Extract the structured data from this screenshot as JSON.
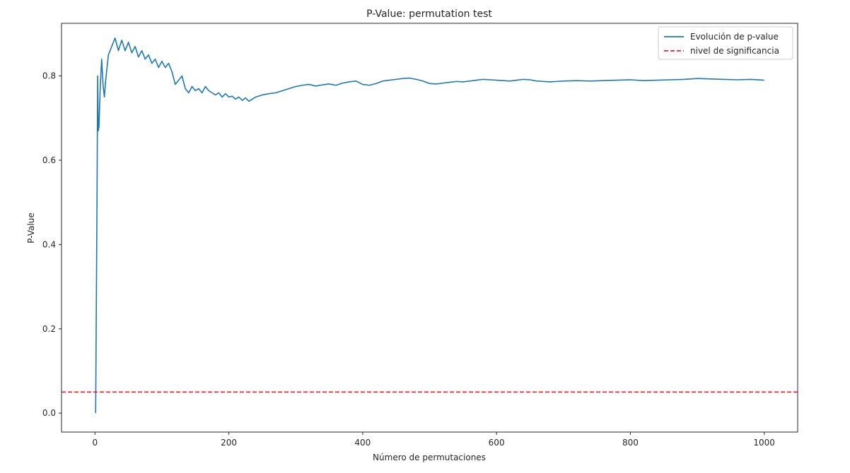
{
  "chart_data": {
    "type": "line",
    "title": "P-Value: permutation test",
    "xlabel": "Número de permutaciones",
    "ylabel": "P-Value",
    "xlim": [
      -50,
      1050
    ],
    "ylim": [
      -0.045,
      0.925
    ],
    "xticks": [
      0,
      200,
      400,
      600,
      800,
      1000
    ],
    "yticks": [
      0.0,
      0.2,
      0.4,
      0.6,
      0.8
    ],
    "xtick_labels": [
      "0",
      "200",
      "400",
      "600",
      "800",
      "1000"
    ],
    "ytick_labels": [
      "0.0",
      "0.2",
      "0.4",
      "0.6",
      "0.8"
    ],
    "grid": false,
    "legend_position": "top-right",
    "series": [
      {
        "name": "Evolución de p-value",
        "color": "#1f77b4",
        "style": "solid",
        "x": [
          1,
          3,
          4,
          5,
          6,
          8,
          10,
          12,
          14,
          16,
          18,
          20,
          25,
          30,
          35,
          40,
          45,
          50,
          55,
          60,
          65,
          70,
          75,
          80,
          85,
          90,
          95,
          100,
          105,
          110,
          115,
          120,
          125,
          130,
          135,
          140,
          145,
          150,
          155,
          160,
          165,
          170,
          175,
          180,
          185,
          190,
          195,
          200,
          205,
          210,
          215,
          220,
          225,
          230,
          235,
          240,
          250,
          260,
          270,
          280,
          290,
          300,
          310,
          320,
          330,
          340,
          350,
          360,
          370,
          380,
          390,
          400,
          410,
          420,
          430,
          440,
          450,
          460,
          470,
          480,
          490,
          500,
          510,
          520,
          530,
          540,
          550,
          560,
          570,
          580,
          590,
          600,
          610,
          620,
          630,
          640,
          650,
          660,
          670,
          680,
          690,
          700,
          720,
          740,
          760,
          780,
          800,
          820,
          840,
          860,
          880,
          900,
          920,
          940,
          960,
          980,
          1000
        ],
        "y": [
          0.0,
          0.5,
          0.8,
          0.67,
          0.68,
          0.78,
          0.84,
          0.78,
          0.75,
          0.79,
          0.82,
          0.85,
          0.87,
          0.89,
          0.86,
          0.885,
          0.86,
          0.88,
          0.855,
          0.87,
          0.845,
          0.86,
          0.84,
          0.85,
          0.83,
          0.84,
          0.82,
          0.835,
          0.82,
          0.83,
          0.81,
          0.78,
          0.79,
          0.8,
          0.77,
          0.76,
          0.775,
          0.765,
          0.77,
          0.76,
          0.775,
          0.765,
          0.76,
          0.755,
          0.76,
          0.75,
          0.758,
          0.75,
          0.752,
          0.745,
          0.75,
          0.742,
          0.748,
          0.74,
          0.745,
          0.75,
          0.755,
          0.758,
          0.76,
          0.765,
          0.77,
          0.775,
          0.778,
          0.78,
          0.776,
          0.779,
          0.781,
          0.778,
          0.783,
          0.786,
          0.788,
          0.78,
          0.778,
          0.782,
          0.788,
          0.79,
          0.792,
          0.794,
          0.795,
          0.792,
          0.788,
          0.782,
          0.781,
          0.783,
          0.785,
          0.787,
          0.786,
          0.788,
          0.79,
          0.792,
          0.791,
          0.79,
          0.789,
          0.788,
          0.79,
          0.792,
          0.791,
          0.788,
          0.787,
          0.786,
          0.787,
          0.788,
          0.789,
          0.788,
          0.789,
          0.79,
          0.791,
          0.789,
          0.79,
          0.791,
          0.792,
          0.794,
          0.793,
          0.792,
          0.791,
          0.792,
          0.79
        ]
      },
      {
        "name": "nivel de significancia",
        "color": "#e8242b",
        "style": "dashed",
        "x": [
          -50,
          1050
        ],
        "y": [
          0.05,
          0.05
        ]
      }
    ]
  }
}
